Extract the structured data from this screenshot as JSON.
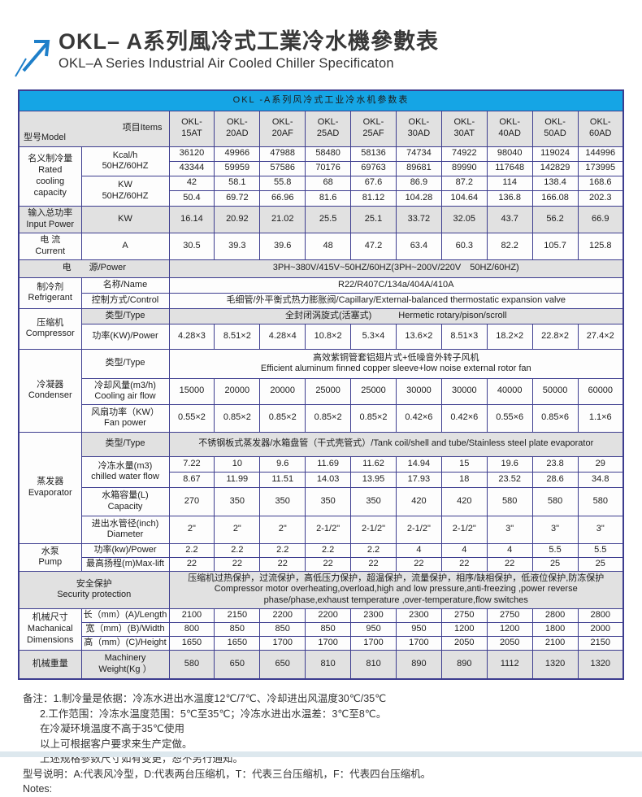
{
  "colors": {
    "header_blue": "#15a5e5",
    "table_border": "#3d3d8f",
    "shaded_row": "#e1e1e1",
    "arrow_blue": "#1e7fc9"
  },
  "header": {
    "title_zh": "OKL– A系列風冷式工業冷水機參數表",
    "title_en": "OKL–A Series Industrial Air Cooled Chiller Specificaton"
  },
  "table": {
    "caption": "OKL -A系列风冷式工业冷水机参数表",
    "corner": {
      "model": "型号Model",
      "items": "项目Items"
    },
    "models": [
      "OKL-\n15AT",
      "OKL-\n20AD",
      "OKL-\n20AF",
      "OKL-\n25AD",
      "OKL-\n25AF",
      "OKL-\n30AD",
      "OKL-\n30AT",
      "OKL-\n40AD",
      "OKL-\n50AD",
      "OKL-\n60AD"
    ],
    "rated": {
      "label": "名义制冷量\nRated\ncooling\ncapacity",
      "kcal_item": "Kcal/h\n50HZ/60HZ",
      "kcal_50hz": [
        "36120",
        "49966",
        "47988",
        "58480",
        "58136",
        "74734",
        "74922",
        "98040",
        "119024",
        "144996"
      ],
      "kcal_60hz": [
        "43344",
        "59959",
        "57586",
        "70176",
        "69763",
        "89681",
        "89990",
        "117648",
        "142829",
        "173995"
      ],
      "kw_item": "KW\n50HZ/60HZ",
      "kw_50hz": [
        "42",
        "58.1",
        "55.8",
        "68",
        "67.6",
        "86.9",
        "87.2",
        "114",
        "138.4",
        "168.6"
      ],
      "kw_60hz": [
        "50.4",
        "69.72",
        "66.96",
        "81.6",
        "81.12",
        "104.28",
        "104.64",
        "136.8",
        "166.08",
        "202.3"
      ]
    },
    "input_power": {
      "label": "输入总功率\nInput Power",
      "unit": "KW",
      "values": [
        "16.14",
        "20.92",
        "21.02",
        "25.5",
        "25.1",
        "33.72",
        "32.05",
        "43.7",
        "56.2",
        "66.9"
      ]
    },
    "current": {
      "label": "电 流\nCurrent",
      "unit": "A",
      "values": [
        "30.5",
        "39.3",
        "39.6",
        "48",
        "47.2",
        "63.4",
        "60.3",
        "82.2",
        "105.7",
        "125.8"
      ]
    },
    "power_source": {
      "label": "电　　源/Power",
      "value": "3PH~380V/415V~50HZ/60HZ(3PH~200V/220V　50HZ/60HZ)"
    },
    "refrigerant": {
      "label": "制冷剂\nRefrigerant",
      "name_item": "名称/Name",
      "name_value": "R22/R407C/134a/404A/410A",
      "control_item": "控制方式/Control",
      "control_value": "毛细管/外平衡式热力膨胀阀/Capillary/External-balanced thermostatic expansion valve"
    },
    "compressor": {
      "label": "压缩机\nCompressor",
      "type_item": "类型/Type",
      "type_value": "全封闭涡旋式(活塞式)　　　Hermetic rotary/pison/scroll",
      "power_item": "功率(KW)/Power",
      "power_values": [
        "4.28×3",
        "8.51×2",
        "4.28×4",
        "10.8×2",
        "5.3×4",
        "13.6×2",
        "8.51×3",
        "18.2×2",
        "22.8×2",
        "27.4×2"
      ]
    },
    "condenser": {
      "label": "冷凝器\nCondenser",
      "type_item": "类型/Type",
      "type_value": "高效紫铜管套铝翅片式+低噪音外转子风机\nEfficient aluminum finned copper sleeve+low noise external rotor fan",
      "airflow_item": "冷却风量(m3/h)\nCooling air flow",
      "airflow_values": [
        "15000",
        "20000",
        "20000",
        "25000",
        "25000",
        "30000",
        "30000",
        "40000",
        "50000",
        "60000"
      ],
      "fan_item": "风扇功率（KW）\nFan power",
      "fan_values": [
        "0.55×2",
        "0.85×2",
        "0.85×2",
        "0.85×2",
        "0.85×2",
        "0.42×6",
        "0.42×6",
        "0.55×6",
        "0.85×6",
        "1.1×6"
      ]
    },
    "evaporator": {
      "label": "蒸发器\nEvaporator",
      "type_item": "类型/Type",
      "type_value": "不锈钢板式蒸发器/水箱盘管（干式壳管式）/Tank coil/shell and tube/Stainless steel plate evaporator",
      "water_item": "冷冻水量(m3)\nchilled water flow",
      "water_50hz": [
        "7.22",
        "10",
        "9.6",
        "11.69",
        "11.62",
        "14.94",
        "15",
        "19.6",
        "23.8",
        "29"
      ],
      "water_60hz": [
        "8.67",
        "11.99",
        "11.51",
        "14.03",
        "13.95",
        "17.93",
        "18",
        "23.52",
        "28.6",
        "34.8"
      ],
      "capacity_item": "水箱容量(L)\nCapacity",
      "capacity_values": [
        "270",
        "350",
        "350",
        "350",
        "350",
        "420",
        "420",
        "580",
        "580",
        "580"
      ],
      "diameter_item": "进出水管径(inch)\nDiameter",
      "diameter_values": [
        "2\"",
        "2\"",
        "2\"",
        "2-1/2\"",
        "2-1/2\"",
        "2-1/2\"",
        "2-1/2\"",
        "3\"",
        "3\"",
        "3\""
      ]
    },
    "pump": {
      "label": "水泵\nPump",
      "power_item": "功率(kw)/Power",
      "power_values": [
        "2.2",
        "2.2",
        "2.2",
        "2.2",
        "2.2",
        "4",
        "4",
        "4",
        "5.5",
        "5.5"
      ],
      "lift_item": "最高扬程(m)Max-lift",
      "lift_values": [
        "22",
        "22",
        "22",
        "22",
        "22",
        "22",
        "22",
        "22",
        "25",
        "25"
      ]
    },
    "security": {
      "label": "安全保护\nSecurity protection",
      "value": "压缩机过热保护，过流保护，高低压力保护，超温保护，流量保护，相序/缺相保护，低液位保护,防冻保护\nCompressor motor overheating,overload,high and low pressure,anti-freezing ,power reverse phase/phase,exhaust temperature ,over-temperature,flow switches"
    },
    "dimensions": {
      "label": "机械尺寸\nMachanical\nDimensions",
      "length_item": "长（mm）(A)/Length",
      "length_values": [
        "2100",
        "2150",
        "2200",
        "2200",
        "2300",
        "2300",
        "2750",
        "2750",
        "2800",
        "2800"
      ],
      "width_item": "宽（mm）(B)/Width",
      "width_values": [
        "800",
        "850",
        "850",
        "850",
        "950",
        "950",
        "1200",
        "1200",
        "1800",
        "2000"
      ],
      "height_item": "高（mm）(C)/Height",
      "height_values": [
        "1650",
        "1650",
        "1700",
        "1700",
        "1700",
        "1700",
        "2050",
        "2050",
        "2100",
        "2150"
      ]
    },
    "weight": {
      "label": "机械重量",
      "item": "Machinery\nWeight(Kg ）",
      "values": [
        "580",
        "650",
        "650",
        "810",
        "810",
        "890",
        "890",
        "1112",
        "1320",
        "1320"
      ]
    }
  },
  "notes": {
    "line1": "备注：1.制冷量是依据：冷冻水进出水温度12℃/7℃、冷却进出风温度30℃/35℃",
    "line2": "2.工作范围：冷冻水温度范围：5℃至35℃；冷冻水进出水温差：3℃至8℃。",
    "line3": "在冷凝环境温度不高于35℃使用",
    "line4": "以上可根据客户要求来生产定做。",
    "line5": "上述规格参数尺寸如有变更，恕不另行通知。",
    "line6": "型号说明：A:代表风冷型，D:代表两台压缩机，T：代表三台压缩机，F：代表四台压缩机。",
    "line7": "Notes:"
  }
}
